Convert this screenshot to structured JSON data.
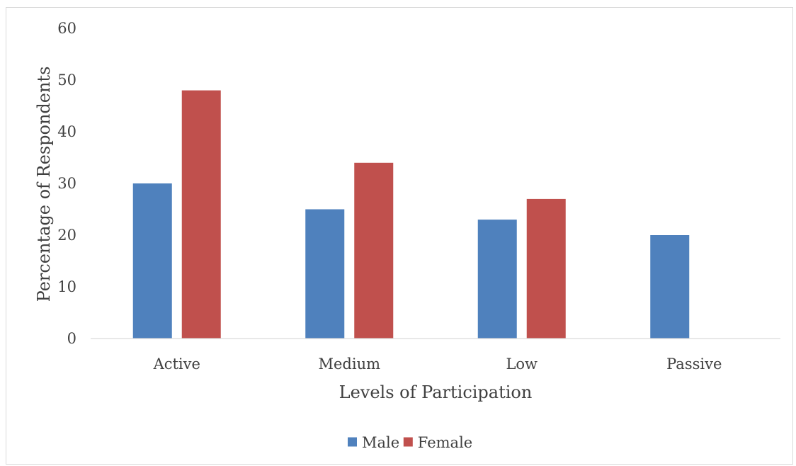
{
  "chart_data": {
    "type": "bar",
    "categories": [
      "Active",
      "Medium",
      "Low",
      "Passive"
    ],
    "series": [
      {
        "name": "Male",
        "values": [
          30,
          25,
          23,
          20
        ],
        "color": "#4f81bd"
      },
      {
        "name": "Female",
        "values": [
          48,
          34,
          27,
          0
        ],
        "color": "#c0504d"
      }
    ],
    "xlabel": "Levels of Participation",
    "ylabel": "Percentage of Respondents",
    "ylim": [
      0,
      60
    ],
    "yticks": [
      "0",
      "10",
      "20",
      "30",
      "40",
      "50",
      "60"
    ],
    "grid": false,
    "legend_position": "bottom"
  }
}
